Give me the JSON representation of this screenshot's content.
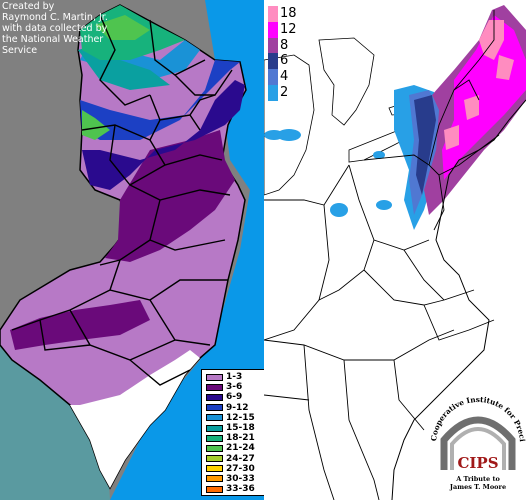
{
  "credit": {
    "lines": [
      "Created by",
      "Raymond C. Martin, Jr.",
      "with data collected by",
      "the National Weather",
      "Service"
    ]
  },
  "nj_legend": {
    "items": [
      {
        "label": "1-3",
        "color": "#b779c6"
      },
      {
        "label": "3-6",
        "color": "#6a0a7a"
      },
      {
        "label": "6-9",
        "color": "#2a0a8e"
      },
      {
        "label": "9-12",
        "color": "#1c40c4"
      },
      {
        "label": "12-15",
        "color": "#1a92d6"
      },
      {
        "label": "15-18",
        "color": "#0aa0a0"
      },
      {
        "label": "18-21",
        "color": "#17b27c"
      },
      {
        "label": "21-24",
        "color": "#4fc44f"
      },
      {
        "label": "24-27",
        "color": "#a6cf2c"
      },
      {
        "label": "27-30",
        "color": "#ffd400"
      },
      {
        "label": "30-33",
        "color": "#ff9a00"
      },
      {
        "label": "33-36",
        "color": "#ff6a00"
      }
    ]
  },
  "region_scale": {
    "items": [
      {
        "label": "18",
        "color": "#ff8cc0"
      },
      {
        "label": "12",
        "color": "#ff00ff"
      },
      {
        "label": "8",
        "color": "#a040a0"
      },
      {
        "label": "6",
        "color": "#283c8c"
      },
      {
        "label": "4",
        "color": "#5078d2"
      },
      {
        "label": "2",
        "color": "#28a0e6"
      }
    ]
  },
  "cips_logo": {
    "letters": "CIPS",
    "ring_text": "Cooperative Institute for Precipitation Systems",
    "tribute_line1": "A Tribute to",
    "tribute_line2": "James T. Moore"
  }
}
